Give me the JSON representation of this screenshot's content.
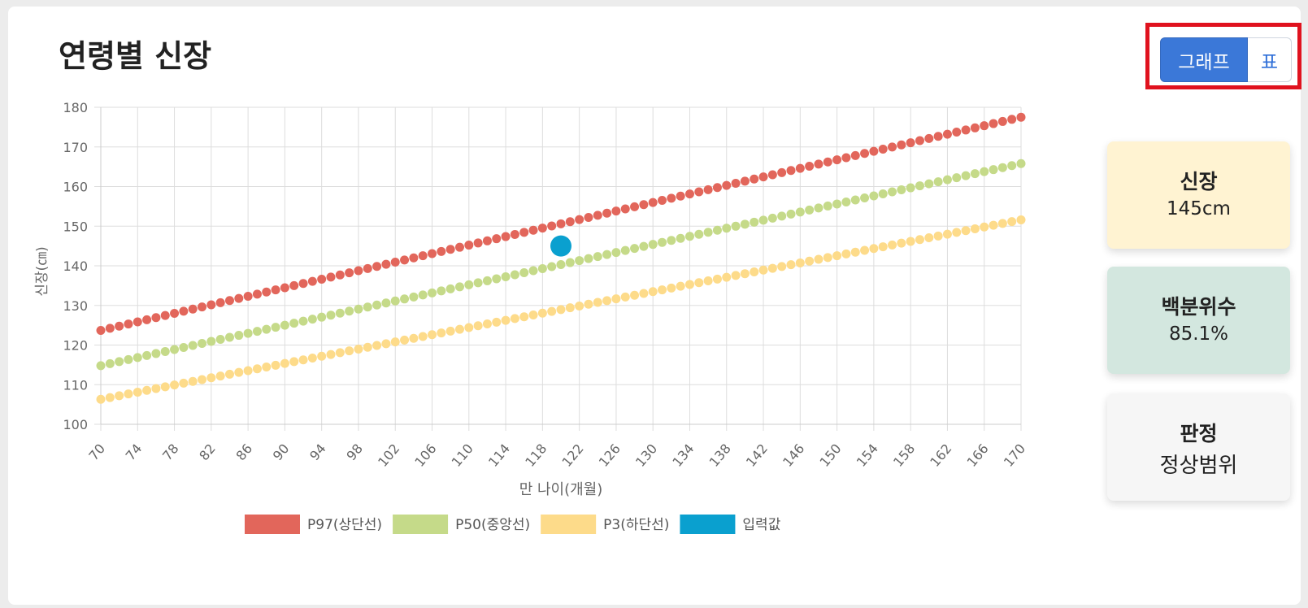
{
  "page": {
    "title": "연령별 신장"
  },
  "toggle": {
    "graph_label": "그래프",
    "table_label": "표"
  },
  "stats": {
    "height_label": "신장",
    "height_value": "145cm",
    "percentile_label": "백분위수",
    "percentile_value": "85.1%",
    "judgment_label": "판정",
    "judgment_value": "정상범위"
  },
  "colors": {
    "p97": "#e2665b",
    "p50": "#c5da89",
    "p3": "#fddb8a",
    "input": "#0aa0cf",
    "height_card": "#fff3d2",
    "percentile_card": "#d3e7df",
    "judgment_card": "#f6f6f6",
    "grid": "#dddddd"
  },
  "chart_data": {
    "type": "line",
    "xlabel": "만 나이(개월)",
    "ylabel": "신장(㎝)",
    "xlim": [
      70,
      170
    ],
    "ylim": [
      100,
      180
    ],
    "x_ticks": [
      70,
      74,
      78,
      82,
      86,
      90,
      94,
      98,
      102,
      106,
      110,
      114,
      118,
      122,
      126,
      130,
      134,
      138,
      142,
      146,
      150,
      154,
      158,
      162,
      166,
      170
    ],
    "y_ticks": [
      100,
      110,
      120,
      130,
      140,
      150,
      160,
      170,
      180
    ],
    "grid": true,
    "legend_position": "bottom",
    "series": [
      {
        "name": "P97(상단선)",
        "color": "#e2665b",
        "x_start": 70,
        "x_end": 170,
        "x_step": 1,
        "y_start": 123.7,
        "y_end": 177.5
      },
      {
        "name": "P50(중앙선)",
        "color": "#c5da89",
        "x_start": 70,
        "x_end": 170,
        "x_step": 1,
        "y_start": 114.8,
        "y_end": 165.8
      },
      {
        "name": "P3(하단선)",
        "color": "#fddb8a",
        "x_start": 70,
        "x_end": 170,
        "x_step": 1,
        "y_start": 106.3,
        "y_end": 151.6
      },
      {
        "name": "입력값",
        "color": "#0aa0cf",
        "points": [
          {
            "x": 120,
            "y": 145
          }
        ]
      }
    ]
  }
}
